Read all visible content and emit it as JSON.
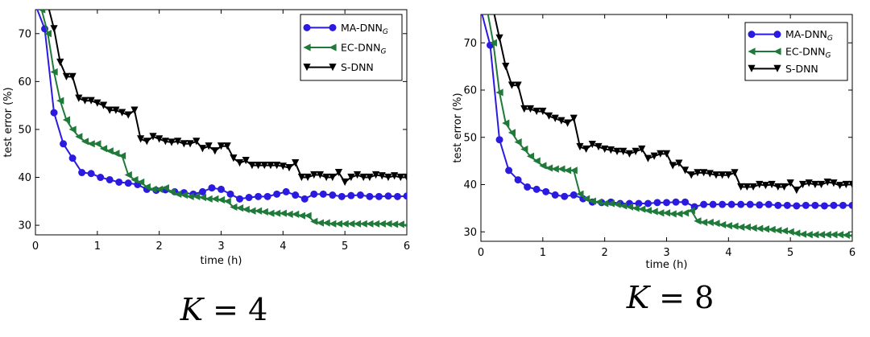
{
  "chart_data": [
    {
      "type": "line",
      "xlabel": "time (h)",
      "ylabel": "test error (%)",
      "xlim": [
        0,
        6
      ],
      "ylim": [
        28,
        75
      ],
      "xticks": [
        "0",
        "1",
        "2",
        "3",
        "4",
        "5",
        "6"
      ],
      "yticks": [
        "30",
        "40",
        "50",
        "60",
        "70"
      ],
      "legend_position": "top-right",
      "caption_var": "K",
      "caption_eq": " = 4",
      "series": [
        {
          "name": "MA-DNN",
          "sub": "G",
          "marker": "circle",
          "color": "#2b1be0",
          "x": [
            0.0,
            0.15,
            0.3,
            0.45,
            0.6,
            0.75,
            0.9,
            1.05,
            1.2,
            1.35,
            1.5,
            1.65,
            1.8,
            1.95,
            2.1,
            2.25,
            2.4,
            2.55,
            2.7,
            2.85,
            3.0,
            3.15,
            3.3,
            3.45,
            3.6,
            3.75,
            3.9,
            4.05,
            4.2,
            4.35,
            4.5,
            4.65,
            4.8,
            4.95,
            5.1,
            5.25,
            5.4,
            5.55,
            5.7,
            5.85,
            6.0
          ],
          "y": [
            76,
            71,
            53.5,
            47,
            44,
            41,
            40.8,
            40,
            39.5,
            39,
            38.8,
            38.5,
            37.5,
            37.3,
            37.4,
            37,
            36.8,
            36.5,
            37,
            37.8,
            37.5,
            36.5,
            35.5,
            35.8,
            36,
            36,
            36.5,
            37,
            36.3,
            35.5,
            36.5,
            36.5,
            36.3,
            36,
            36.2,
            36.3,
            36,
            36,
            36.1,
            36,
            36.1
          ]
        },
        {
          "name": "EC-DNN",
          "sub": "G",
          "marker": "triangle-left",
          "color": "#1f7a3a",
          "x": [
            0.0,
            0.1,
            0.2,
            0.3,
            0.4,
            0.5,
            0.6,
            0.7,
            0.8,
            0.9,
            1.0,
            1.1,
            1.2,
            1.3,
            1.4,
            1.5,
            1.6,
            1.7,
            1.8,
            1.9,
            2.0,
            2.1,
            2.2,
            2.3,
            2.4,
            2.5,
            2.6,
            2.7,
            2.8,
            2.9,
            3.0,
            3.1,
            3.2,
            3.3,
            3.4,
            3.5,
            3.6,
            3.7,
            3.8,
            3.9,
            4.0,
            4.1,
            4.2,
            4.3,
            4.4,
            4.5,
            4.6,
            4.7,
            4.8,
            4.9,
            5.0,
            5.1,
            5.2,
            5.3,
            5.4,
            5.5,
            5.6,
            5.7,
            5.8,
            5.9,
            6.0
          ],
          "y": [
            76,
            75,
            70,
            62,
            56,
            52,
            50,
            48.5,
            47.5,
            47,
            47,
            46,
            45.5,
            45,
            44.5,
            40.5,
            39.5,
            39,
            38,
            37.5,
            37.5,
            37.8,
            37,
            36.5,
            36.3,
            36,
            36,
            35.8,
            35.5,
            35.5,
            35.3,
            35,
            33.8,
            33.6,
            33.3,
            33,
            33,
            32.8,
            32.5,
            32.5,
            32.5,
            32.3,
            32.3,
            32,
            32,
            30.8,
            30.5,
            30.5,
            30.3,
            30.3,
            30.3,
            30.3,
            30.3,
            30.3,
            30.3,
            30.3,
            30.3,
            30.3,
            30.2,
            30.2,
            30
          ]
        },
        {
          "name": "S-DNN",
          "sub": "",
          "marker": "triangle-down",
          "color": "#000000",
          "x": [
            0.0,
            0.1,
            0.2,
            0.3,
            0.4,
            0.5,
            0.6,
            0.7,
            0.8,
            0.9,
            1.0,
            1.1,
            1.2,
            1.3,
            1.4,
            1.5,
            1.6,
            1.7,
            1.8,
            1.9,
            2.0,
            2.1,
            2.2,
            2.3,
            2.4,
            2.5,
            2.6,
            2.7,
            2.8,
            2.9,
            3.0,
            3.1,
            3.2,
            3.3,
            3.4,
            3.5,
            3.6,
            3.7,
            3.8,
            3.9,
            4.0,
            4.1,
            4.2,
            4.3,
            4.4,
            4.5,
            4.6,
            4.7,
            4.8,
            4.9,
            5.0,
            5.1,
            5.2,
            5.3,
            5.4,
            5.5,
            5.6,
            5.7,
            5.8,
            5.9,
            6.0
          ],
          "y": [
            76,
            76,
            76,
            71,
            64,
            61,
            61,
            56.5,
            56,
            56,
            55.5,
            55,
            54,
            54,
            53.5,
            53,
            54,
            48,
            47.5,
            48.5,
            48,
            47.5,
            47.3,
            47.5,
            47,
            47,
            47.5,
            46,
            46.5,
            45.5,
            46.5,
            46.5,
            44,
            43,
            43.5,
            42.5,
            42.5,
            42.5,
            42.5,
            42.5,
            42.3,
            42,
            43,
            40,
            40,
            40.5,
            40.5,
            40,
            40,
            41,
            39,
            40,
            40.5,
            40,
            40,
            40.5,
            40.3,
            40,
            40.3,
            40,
            40
          ]
        }
      ]
    },
    {
      "type": "line",
      "xlabel": "time (h)",
      "ylabel": "test error (%)",
      "xlim": [
        0,
        6
      ],
      "ylim": [
        28,
        76
      ],
      "xticks": [
        "0",
        "1",
        "2",
        "3",
        "4",
        "5",
        "6"
      ],
      "yticks": [
        "30",
        "40",
        "50",
        "60",
        "70"
      ],
      "legend_position": "top-right",
      "caption_var": "K",
      "caption_eq": " = 8",
      "series": [
        {
          "name": "MA-DNN",
          "sub": "G",
          "marker": "circle",
          "color": "#2b1be0",
          "x": [
            0.0,
            0.15,
            0.3,
            0.45,
            0.6,
            0.75,
            0.9,
            1.05,
            1.2,
            1.35,
            1.5,
            1.65,
            1.8,
            1.95,
            2.1,
            2.25,
            2.4,
            2.55,
            2.7,
            2.85,
            3.0,
            3.15,
            3.3,
            3.45,
            3.6,
            3.75,
            3.9,
            4.05,
            4.2,
            4.35,
            4.5,
            4.65,
            4.8,
            4.95,
            5.1,
            5.25,
            5.4,
            5.55,
            5.7,
            5.85,
            6.0
          ],
          "y": [
            77,
            69.5,
            49.5,
            43,
            41,
            39.5,
            39,
            38.5,
            37.8,
            37.5,
            37.8,
            37,
            36.3,
            36.2,
            36.3,
            36,
            36,
            36,
            36,
            36.2,
            36.2,
            36.3,
            36.3,
            35.3,
            35.8,
            35.8,
            35.8,
            35.8,
            35.8,
            35.8,
            35.7,
            35.8,
            35.6,
            35.6,
            35.5,
            35.6,
            35.6,
            35.5,
            35.6,
            35.6,
            35.6
          ]
        },
        {
          "name": "EC-DNN",
          "sub": "G",
          "marker": "triangle-left",
          "color": "#1f7a3a",
          "x": [
            0.0,
            0.1,
            0.2,
            0.3,
            0.4,
            0.5,
            0.6,
            0.7,
            0.8,
            0.9,
            1.0,
            1.1,
            1.2,
            1.3,
            1.4,
            1.5,
            1.6,
            1.7,
            1.8,
            1.9,
            2.0,
            2.1,
            2.2,
            2.3,
            2.4,
            2.5,
            2.6,
            2.7,
            2.8,
            2.9,
            3.0,
            3.1,
            3.2,
            3.3,
            3.4,
            3.5,
            3.6,
            3.7,
            3.8,
            3.9,
            4.0,
            4.1,
            4.2,
            4.3,
            4.4,
            4.5,
            4.6,
            4.7,
            4.8,
            4.9,
            5.0,
            5.1,
            5.2,
            5.3,
            5.4,
            5.5,
            5.6,
            5.7,
            5.8,
            5.9,
            6.0
          ],
          "y": [
            77,
            77,
            70,
            59.5,
            53,
            51,
            49,
            47.5,
            46,
            45,
            44,
            43.5,
            43.3,
            43.3,
            43,
            43,
            38,
            37,
            36.5,
            36.3,
            36,
            36,
            35.8,
            35.5,
            35.3,
            35,
            34.8,
            34.5,
            34.3,
            34,
            34,
            33.8,
            33.8,
            34,
            34.5,
            32.3,
            32,
            32,
            31.8,
            31.5,
            31.3,
            31.2,
            31,
            31,
            30.8,
            30.7,
            30.6,
            30.5,
            30.3,
            30.2,
            30,
            29.7,
            29.5,
            29.4,
            29.4,
            29.4,
            29.4,
            29.4,
            29.4,
            29.3,
            29.2
          ]
        },
        {
          "name": "S-DNN",
          "sub": "",
          "marker": "triangle-down",
          "color": "#000000",
          "x": [
            0.0,
            0.1,
            0.2,
            0.3,
            0.4,
            0.5,
            0.6,
            0.7,
            0.8,
            0.9,
            1.0,
            1.1,
            1.2,
            1.3,
            1.4,
            1.5,
            1.6,
            1.7,
            1.8,
            1.9,
            2.0,
            2.1,
            2.2,
            2.3,
            2.4,
            2.5,
            2.6,
            2.7,
            2.8,
            2.9,
            3.0,
            3.1,
            3.2,
            3.3,
            3.4,
            3.5,
            3.6,
            3.7,
            3.8,
            3.9,
            4.0,
            4.1,
            4.2,
            4.3,
            4.4,
            4.5,
            4.6,
            4.7,
            4.8,
            4.9,
            5.0,
            5.1,
            5.2,
            5.3,
            5.4,
            5.5,
            5.6,
            5.7,
            5.8,
            5.9,
            6.0
          ],
          "y": [
            77,
            77,
            77,
            71,
            65,
            61,
            61,
            56,
            56,
            55.5,
            55.5,
            54.5,
            54,
            53.5,
            53,
            54,
            48,
            47.5,
            48.5,
            48,
            47.5,
            47.3,
            47,
            47,
            46.5,
            47,
            47.5,
            45.5,
            46,
            46.5,
            46.5,
            44,
            44.5,
            43,
            42,
            42.5,
            42.5,
            42.3,
            42,
            42,
            42,
            42.5,
            39.5,
            39.5,
            39.5,
            40,
            39.8,
            40,
            39.5,
            39.5,
            40.3,
            38.8,
            40,
            40.3,
            40,
            40,
            40.5,
            40.3,
            39.8,
            40,
            40
          ]
        }
      ]
    }
  ]
}
